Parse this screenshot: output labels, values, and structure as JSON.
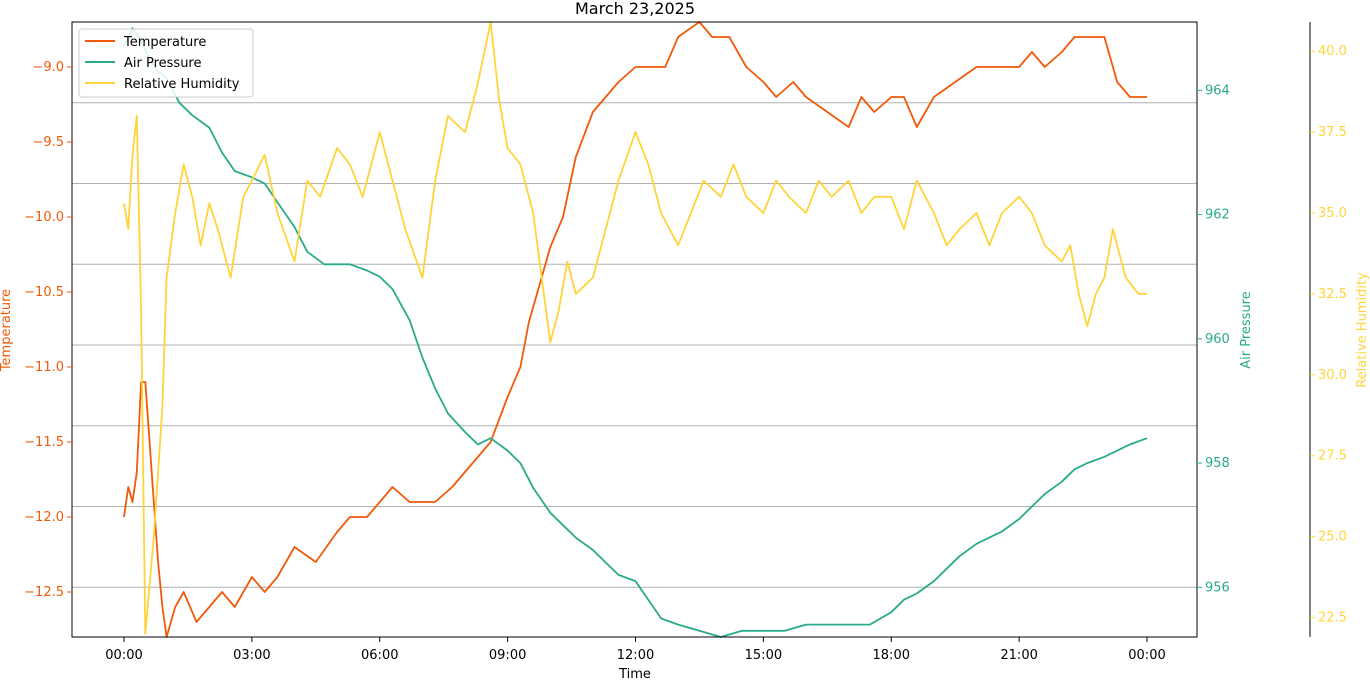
{
  "chart_data": {
    "type": "line",
    "title": "March 23,2025",
    "xlabel": "Time",
    "x_ticks": [
      "00:00",
      "03:00",
      "06:00",
      "09:00",
      "12:00",
      "15:00",
      "18:00",
      "21:00",
      "00:00"
    ],
    "grid": "horizontal lines on Air Pressure axis",
    "legend_position": "top-left",
    "axes": {
      "temperature": {
        "label": "Temperature",
        "color": "#f05a0a",
        "ylim": [
          -12.8,
          -8.7
        ],
        "ticks": [
          -12.5,
          -12.0,
          -11.5,
          -11.0,
          -10.5,
          -10.0,
          -9.5,
          -9.0
        ],
        "tick_labels": [
          "−12.5",
          "−12.0",
          "−11.5",
          "−11.0",
          "−10.5",
          "−10.0",
          "−9.5",
          "−9.0"
        ]
      },
      "air_pressure": {
        "label": "Air Pressure",
        "color": "#2aaa8a",
        "ylim": [
          955.2,
          965.1
        ],
        "ticks": [
          956,
          958,
          960,
          962,
          964
        ],
        "tick_labels": [
          "956",
          "958",
          "960",
          "962",
          "964"
        ]
      },
      "humidity": {
        "label": "Relative Humidity",
        "color": "#ffd43b",
        "ylim": [
          21.9,
          40.9
        ],
        "ticks": [
          22.5,
          25.0,
          27.5,
          30.0,
          32.5,
          35.0,
          37.5,
          40.0
        ],
        "tick_labels": [
          "22.5",
          "25.0",
          "27.5",
          "30.0",
          "32.5",
          "35.0",
          "37.5",
          "40.0"
        ]
      }
    },
    "series": [
      {
        "name": "Temperature",
        "axis": "temperature",
        "color": "#f05a0a",
        "x": [
          0,
          0.1,
          0.2,
          0.3,
          0.4,
          0.5,
          0.6,
          0.7,
          0.8,
          0.9,
          1.0,
          1.2,
          1.4,
          1.7,
          2.0,
          2.3,
          2.6,
          3.0,
          3.3,
          3.6,
          4.0,
          4.5,
          5.0,
          5.3,
          5.7,
          6.0,
          6.3,
          6.7,
          7.0,
          7.3,
          7.7,
          8.0,
          8.3,
          8.6,
          9.0,
          9.3,
          9.5,
          9.7,
          10.0,
          10.3,
          10.6,
          11.0,
          11.3,
          11.6,
          12.0,
          12.3,
          12.7,
          13.0,
          13.5,
          13.8,
          14.2,
          14.6,
          15.0,
          15.3,
          15.7,
          16.0,
          16.5,
          17.0,
          17.3,
          17.6,
          18.0,
          18.3,
          18.6,
          19.0,
          19.5,
          20.0,
          20.3,
          20.7,
          21.0,
          21.3,
          21.6,
          22.0,
          22.3,
          22.6,
          23.0,
          23.3,
          23.6,
          24.0
        ],
        "values": [
          -12.0,
          -11.8,
          -11.9,
          -11.7,
          -11.1,
          -11.1,
          -11.5,
          -11.9,
          -12.3,
          -12.6,
          -12.8,
          -12.6,
          -12.5,
          -12.7,
          -12.6,
          -12.5,
          -12.6,
          -12.4,
          -12.5,
          -12.4,
          -12.2,
          -12.3,
          -12.1,
          -12.0,
          -12.0,
          -11.9,
          -11.8,
          -11.9,
          -11.9,
          -11.9,
          -11.8,
          -11.7,
          -11.6,
          -11.5,
          -11.2,
          -11.0,
          -10.7,
          -10.5,
          -10.2,
          -10.0,
          -9.6,
          -9.3,
          -9.2,
          -9.1,
          -9.0,
          -9.0,
          -9.0,
          -8.8,
          -8.7,
          -8.8,
          -8.8,
          -9.0,
          -9.1,
          -9.2,
          -9.1,
          -9.2,
          -9.3,
          -9.4,
          -9.2,
          -9.3,
          -9.2,
          -9.2,
          -9.4,
          -9.2,
          -9.1,
          -9.0,
          -9.0,
          -9.0,
          -9.0,
          -8.9,
          -9.0,
          -8.9,
          -8.8,
          -8.8,
          -8.8,
          -9.1,
          -9.2,
          -9.2
        ]
      },
      {
        "name": "Air Pressure",
        "axis": "air_pressure",
        "color": "#2aaa8a",
        "x": [
          0,
          0.2,
          0.4,
          0.6,
          0.8,
          1.0,
          1.3,
          1.6,
          2.0,
          2.3,
          2.6,
          3.0,
          3.3,
          3.6,
          4.0,
          4.3,
          4.7,
          5.0,
          5.3,
          5.7,
          6.0,
          6.3,
          6.7,
          7.0,
          7.3,
          7.6,
          8.0,
          8.3,
          8.6,
          9.0,
          9.3,
          9.6,
          10.0,
          10.3,
          10.6,
          11.0,
          11.3,
          11.6,
          12.0,
          12.3,
          12.6,
          13.0,
          13.5,
          14.0,
          14.5,
          15.0,
          15.5,
          16.0,
          16.5,
          17.0,
          17.5,
          18.0,
          18.3,
          18.6,
          19.0,
          19.3,
          19.6,
          20.0,
          20.3,
          20.6,
          21.0,
          21.3,
          21.6,
          22.0,
          22.3,
          22.6,
          23.0,
          23.3,
          23.6,
          24.0
        ],
        "values": [
          964.7,
          965.0,
          964.8,
          964.5,
          964.3,
          964.2,
          963.8,
          963.6,
          963.4,
          963.0,
          962.7,
          962.6,
          962.5,
          962.2,
          961.8,
          961.4,
          961.2,
          961.2,
          961.2,
          961.1,
          961.0,
          960.8,
          960.3,
          959.7,
          959.2,
          958.8,
          958.5,
          958.3,
          958.4,
          958.2,
          958.0,
          957.6,
          957.2,
          957.0,
          956.8,
          956.6,
          956.4,
          956.2,
          956.1,
          955.8,
          955.5,
          955.4,
          955.3,
          955.2,
          955.3,
          955.3,
          955.3,
          955.4,
          955.4,
          955.4,
          955.4,
          955.6,
          955.8,
          955.9,
          956.1,
          956.3,
          956.5,
          956.7,
          956.8,
          956.9,
          957.1,
          957.3,
          957.5,
          957.7,
          957.9,
          958.0,
          958.1,
          958.2,
          958.3,
          958.4
        ]
      },
      {
        "name": "Relative Humidity",
        "axis": "humidity",
        "color": "#ffd43b",
        "x": [
          0,
          0.1,
          0.2,
          0.3,
          0.4,
          0.5,
          0.6,
          0.7,
          0.8,
          0.9,
          1.0,
          1.2,
          1.4,
          1.6,
          1.8,
          2.0,
          2.2,
          2.5,
          2.8,
          3.0,
          3.3,
          3.6,
          4.0,
          4.3,
          4.6,
          5.0,
          5.3,
          5.6,
          6.0,
          6.3,
          6.6,
          7.0,
          7.3,
          7.6,
          8.0,
          8.3,
          8.6,
          8.8,
          9.0,
          9.3,
          9.6,
          9.8,
          10.0,
          10.2,
          10.4,
          10.6,
          11.0,
          11.3,
          11.6,
          12.0,
          12.3,
          12.6,
          13.0,
          13.3,
          13.6,
          14.0,
          14.3,
          14.6,
          15.0,
          15.3,
          15.6,
          16.0,
          16.3,
          16.6,
          17.0,
          17.3,
          17.6,
          18.0,
          18.3,
          18.6,
          19.0,
          19.3,
          19.6,
          20.0,
          20.3,
          20.6,
          21.0,
          21.3,
          21.6,
          22.0,
          22.2,
          22.4,
          22.6,
          22.8,
          23.0,
          23.2,
          23.5,
          23.8,
          24.0
        ],
        "values": [
          35.3,
          34.5,
          36.8,
          38.0,
          32.0,
          22.0,
          23.5,
          25.0,
          27.0,
          29.0,
          33.0,
          35.0,
          36.5,
          35.5,
          34.0,
          35.3,
          34.5,
          33.0,
          35.5,
          36.0,
          36.8,
          35.0,
          33.5,
          36.0,
          35.5,
          37.0,
          36.5,
          35.5,
          37.5,
          36.0,
          34.5,
          33.0,
          36.0,
          38.0,
          37.5,
          39.0,
          41.0,
          38.5,
          37.0,
          36.5,
          35.0,
          33.0,
          31.0,
          32.0,
          33.5,
          32.5,
          33.0,
          34.5,
          36.0,
          37.5,
          36.5,
          35.0,
          34.0,
          35.0,
          36.0,
          35.5,
          36.5,
          35.5,
          35.0,
          36.0,
          35.5,
          35.0,
          36.0,
          35.5,
          36.0,
          35.0,
          35.5,
          35.5,
          34.5,
          36.0,
          35.0,
          34.0,
          34.5,
          35.0,
          34.0,
          35.0,
          35.5,
          35.0,
          34.0,
          33.5,
          34.0,
          32.5,
          31.5,
          32.5,
          33.0,
          34.5,
          33.0,
          32.5,
          32.5
        ]
      }
    ]
  }
}
